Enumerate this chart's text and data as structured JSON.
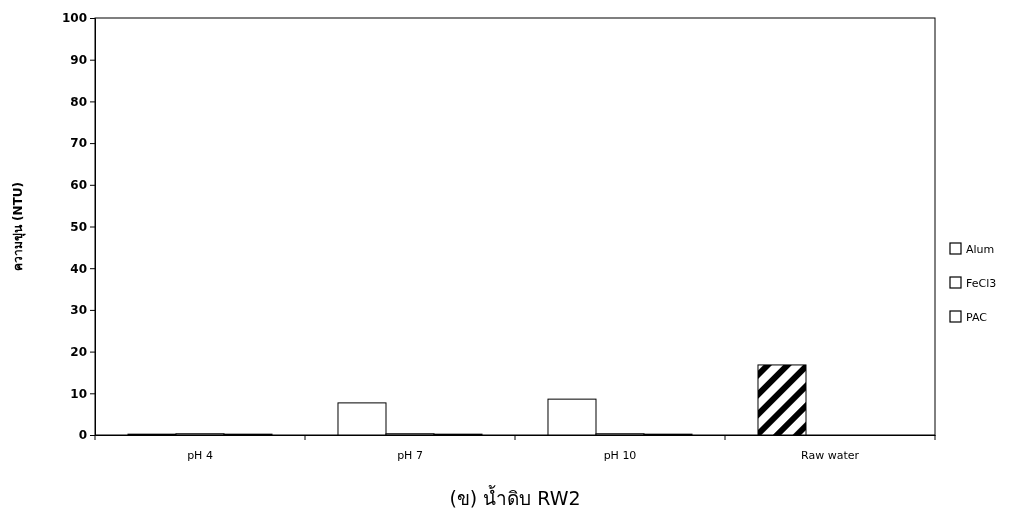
{
  "chart_data": {
    "type": "bar",
    "title": "(ข) น้ำดิบ RW2",
    "ylabel": "ความขุ่น (NTU)",
    "categories": [
      "pH 4",
      "pH 7",
      "pH 10",
      "Raw water"
    ],
    "series": [
      {
        "name": "Alum",
        "color": "#ffffff",
        "values": [
          0.2,
          7.7,
          8.6,
          null
        ]
      },
      {
        "name": "FeCl3",
        "color": "#ffffff",
        "values": [
          0.3,
          0.3,
          0.3,
          null
        ]
      },
      {
        "name": "PAC",
        "color": "#ffffff",
        "values": [
          0.2,
          0.2,
          0.2,
          null
        ]
      },
      {
        "color": "#000000",
        "values": [
          null,
          null,
          null,
          16.8
        ]
      }
    ],
    "ylim": [
      0,
      100
    ],
    "yticks": [
      0,
      10,
      20,
      30,
      40,
      50,
      60,
      70,
      80,
      90,
      100
    ],
    "grid": false,
    "legend": "right"
  }
}
